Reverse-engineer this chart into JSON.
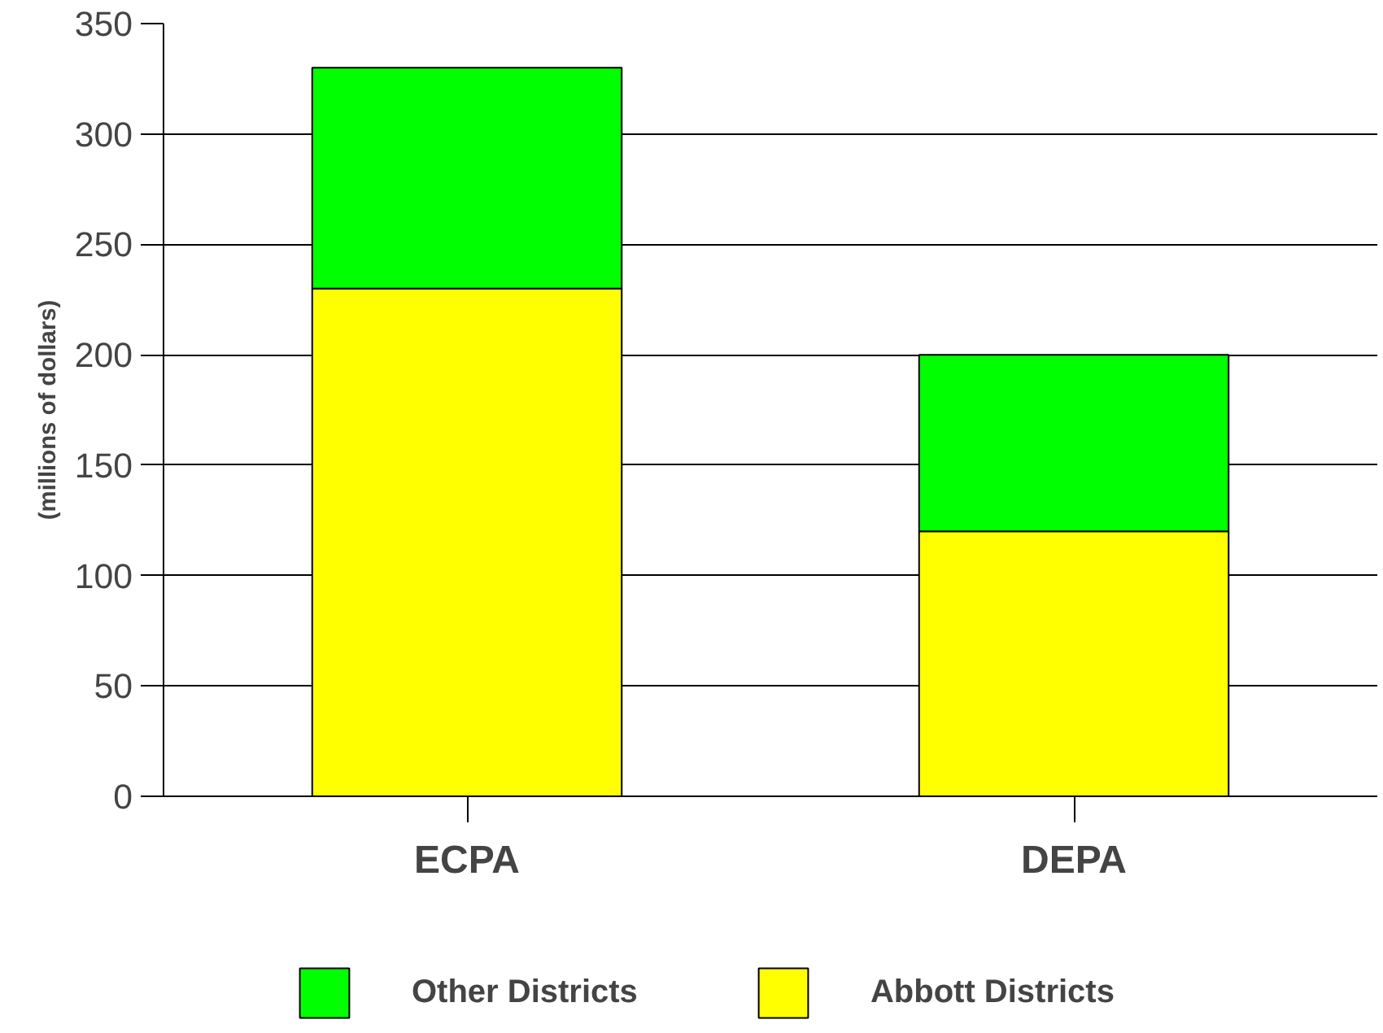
{
  "chart_data": {
    "type": "bar",
    "stacked": true,
    "ylabel": "(millions of dollars)",
    "categories": [
      "ECPA",
      "DEPA"
    ],
    "series": [
      {
        "name": "Abbott Districts",
        "color": "#ffff00",
        "values": [
          230,
          120
        ]
      },
      {
        "name": "Other Districts",
        "color": "#00ff00",
        "values": [
          100,
          80
        ]
      }
    ],
    "ylim": [
      0,
      350
    ],
    "yticks": [
      0,
      50,
      100,
      150,
      200,
      250,
      300,
      350
    ],
    "grid": "y",
    "legend": "bottom"
  }
}
